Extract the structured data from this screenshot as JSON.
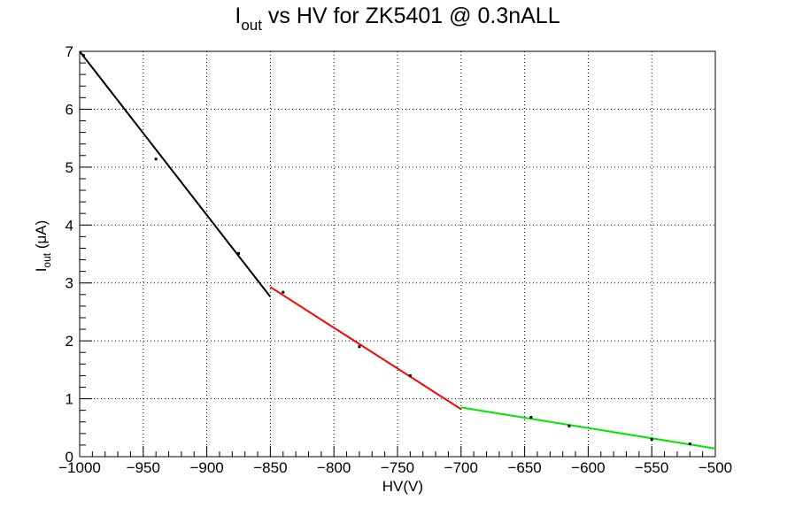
{
  "chart_data": {
    "type": "scatter",
    "title": {
      "main": "I",
      "sub": "out",
      "rest": " vs HV for ZK5401 @ 0.3nALL"
    },
    "xlabel": "HV(V)",
    "ylabel": {
      "main": "I",
      "sub": "out",
      "rest": " (μA)"
    },
    "xlim": [
      -1000,
      -500
    ],
    "ylim": [
      0,
      7
    ],
    "xticks": [
      -1000,
      -950,
      -900,
      -850,
      -800,
      -750,
      -700,
      -650,
      -600,
      -550,
      -500
    ],
    "xtick_labels": [
      "−1000",
      "−950",
      "−900",
      "−850",
      "−800",
      "−750",
      "−700",
      "−650",
      "−600",
      "−550",
      "−500"
    ],
    "yticks": [
      0,
      1,
      2,
      3,
      4,
      5,
      6,
      7
    ],
    "ytick_labels": [
      "0",
      "1",
      "2",
      "3",
      "4",
      "5",
      "6",
      "7"
    ],
    "grid": true,
    "points": [
      {
        "x": -997,
        "y": 6.93
      },
      {
        "x": -940,
        "y": 5.14
      },
      {
        "x": -875,
        "y": 3.51
      },
      {
        "x": -840,
        "y": 2.84
      },
      {
        "x": -780,
        "y": 1.9
      },
      {
        "x": -740,
        "y": 1.4
      },
      {
        "x": -645,
        "y": 0.68
      },
      {
        "x": -615,
        "y": 0.53
      },
      {
        "x": -550,
        "y": 0.3
      },
      {
        "x": -520,
        "y": 0.22
      }
    ],
    "fits": [
      {
        "color": "#000000",
        "x": [
          -1000,
          -850
        ],
        "y": [
          7.0,
          2.76
        ]
      },
      {
        "color": "#ff0000",
        "x": [
          -850,
          -700
        ],
        "y": [
          2.93,
          0.82
        ]
      },
      {
        "color": "#00e600",
        "x": [
          -700,
          -500
        ],
        "y": [
          0.85,
          0.14
        ]
      }
    ]
  }
}
